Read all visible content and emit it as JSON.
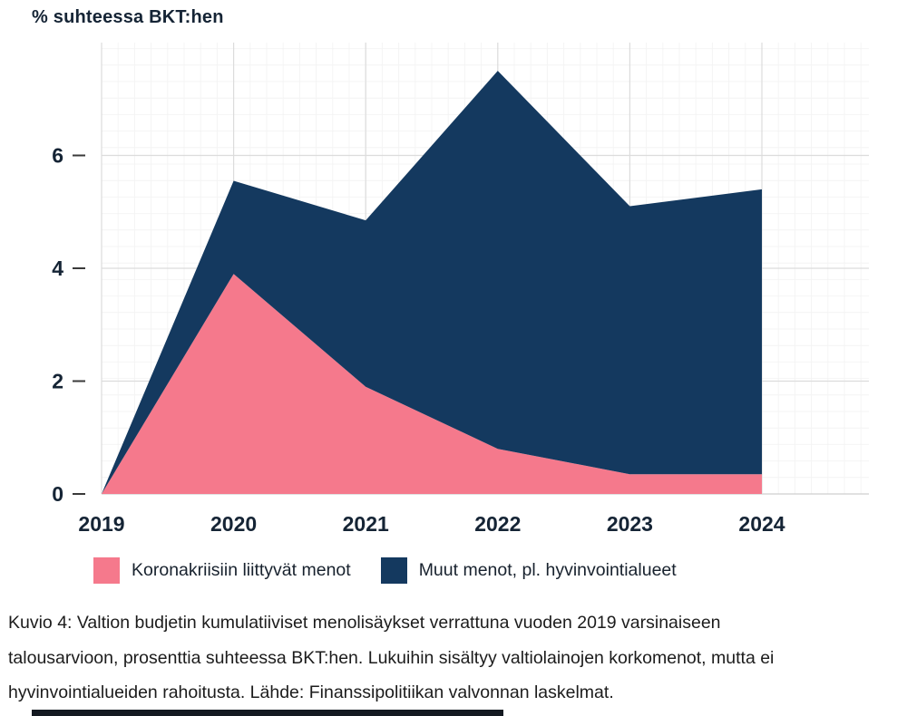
{
  "title": "% suhteessa BKT:hen",
  "chart_data": {
    "type": "area",
    "stacked": true,
    "x": [
      "2019",
      "2020",
      "2021",
      "2022",
      "2023",
      "2024"
    ],
    "series": [
      {
        "name": "Koronakriisiin liittyvät menot",
        "color": "#F5798C",
        "values": [
          0,
          3.9,
          1.9,
          0.8,
          0.35,
          0.35
        ]
      },
      {
        "name": "Muut menot, pl. hyvinvointialueet",
        "color": "#14395F",
        "values": [
          0,
          1.65,
          2.95,
          6.7,
          4.75,
          5.05
        ]
      }
    ],
    "stacked_totals": [
      0,
      5.55,
      4.85,
      7.5,
      5.1,
      5.4
    ],
    "title": "% suhteessa BKT:hen",
    "xlabel": "",
    "ylabel": "% suhteessa BKT:hen",
    "ylim": [
      0,
      8
    ],
    "yticks": [
      0,
      2,
      4,
      6
    ],
    "grid": true,
    "legend_position": "bottom"
  },
  "caption": {
    "lines": [
      "Kuvio 4: Valtion budjetin kumulatiiviset menolisäykset verrattuna vuoden 2019 varsinaiseen",
      "talousarvioon, prosenttia suhteessa BKT:hen. Lukuihin sisältyy valtiolainojen korkomenot, mutta ei",
      "hyvinvointialueiden rahoitusta. Lähde: Finanssipolitiikan valvonnan laskelmat."
    ]
  },
  "colors": {
    "background": "#FFFFFF",
    "axis_text": "#152435",
    "tick_mark": "#3A3A3A",
    "grid_major": "#DCDCDC",
    "grid_minor": "#F4F4F4",
    "baseline": "#CFCFCF",
    "caption_text": "#1C1C1C",
    "bottom_bar": "#141921"
  }
}
